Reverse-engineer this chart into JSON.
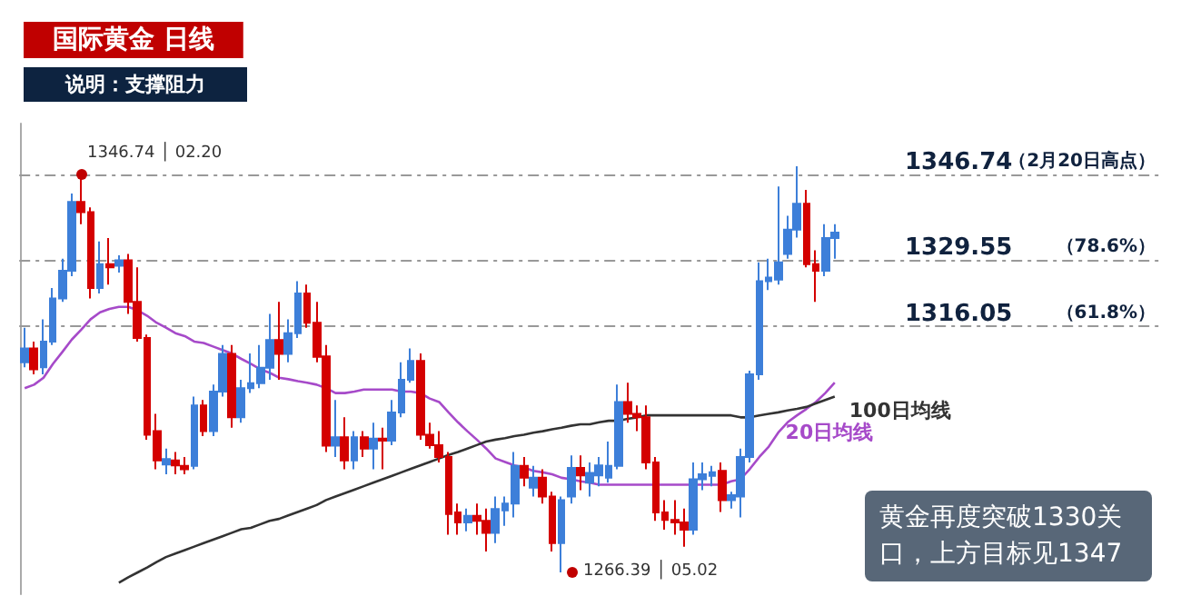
{
  "chart_data": {
    "type": "candlestick",
    "title": "国际黄金 日线",
    "subtitle": "说明：支撑阻力",
    "categories": [
      null,
      null,
      null,
      null,
      null,
      null,
      null,
      null,
      null,
      null,
      null,
      null,
      null,
      null,
      null,
      null,
      null,
      null,
      null,
      null,
      null,
      null,
      null,
      null,
      null,
      null,
      null,
      null,
      null,
      null,
      null,
      null,
      null,
      null,
      null,
      null,
      null,
      null,
      null,
      null,
      null,
      null,
      null,
      null,
      null,
      null,
      null,
      null,
      null,
      null,
      null,
      null,
      null,
      null,
      null,
      null,
      null,
      null,
      null,
      null,
      null,
      null,
      null,
      null,
      null,
      null,
      null,
      null,
      null,
      null,
      null,
      null,
      null,
      null,
      null,
      null,
      null,
      null,
      null,
      null,
      null,
      null,
      null,
      null,
      null,
      null,
      null
    ],
    "ohlc": [
      [
        1308.8,
        1315.8,
        1307.8,
        1311.6
      ],
      [
        1311.6,
        1313.0,
        1306.4,
        1307.4
      ],
      [
        1307.8,
        1317.5,
        1306.4,
        1313.0
      ],
      [
        1313.0,
        1323.8,
        1312.3,
        1321.7
      ],
      [
        1321.7,
        1329.7,
        1321.0,
        1327.3
      ],
      [
        1327.3,
        1342.9,
        1326.2,
        1341.2
      ],
      [
        1341.2,
        1346.74,
        1336.7,
        1339.1
      ],
      [
        1339.1,
        1340.1,
        1321.7,
        1323.8
      ],
      [
        1323.8,
        1333.2,
        1322.7,
        1328.6
      ],
      [
        1328.6,
        1333.9,
        1324.5,
        1328.0
      ],
      [
        1328.3,
        1330.4,
        1326.9,
        1329.4
      ],
      [
        1329.4,
        1330.7,
        1318.6,
        1321.0
      ],
      [
        1321.0,
        1328.0,
        1313.0,
        1313.7
      ],
      [
        1313.7,
        1314.4,
        1293.2,
        1294.2
      ],
      [
        1294.9,
        1298.4,
        1287.2,
        1289.0
      ],
      [
        1288.2,
        1291.4,
        1286.2,
        1289.3
      ],
      [
        1289.0,
        1290.7,
        1286.2,
        1288.0
      ],
      [
        1287.9,
        1289.7,
        1286.2,
        1287.2
      ],
      [
        1287.9,
        1301.9,
        1287.2,
        1300.1
      ],
      [
        1300.1,
        1301.2,
        1293.9,
        1294.9
      ],
      [
        1294.9,
        1304.3,
        1293.9,
        1302.9
      ],
      [
        1302.9,
        1312.3,
        1301.9,
        1310.5
      ],
      [
        1310.5,
        1312.3,
        1295.6,
        1297.7
      ],
      [
        1297.7,
        1305.3,
        1296.6,
        1303.6
      ],
      [
        1303.6,
        1310.6,
        1302.6,
        1304.6
      ],
      [
        1304.6,
        1312.3,
        1303.6,
        1307.7
      ],
      [
        1307.7,
        1318.6,
        1305.3,
        1313.3
      ],
      [
        1313.3,
        1321.0,
        1305.3,
        1310.5
      ],
      [
        1310.5,
        1317.5,
        1308.8,
        1314.7
      ],
      [
        1314.7,
        1325.2,
        1313.7,
        1322.7
      ],
      [
        1322.7,
        1324.5,
        1315.8,
        1316.8
      ],
      [
        1316.8,
        1321.0,
        1308.8,
        1309.9
      ],
      [
        1310.0,
        1312.3,
        1290.7,
        1292.0
      ],
      [
        1292.0,
        1301.2,
        1289.7,
        1293.7
      ],
      [
        1293.7,
        1297.7,
        1287.2,
        1289.0
      ],
      [
        1289.0,
        1294.9,
        1287.2,
        1293.7
      ],
      [
        1293.7,
        1294.9,
        1289.7,
        1291.4
      ],
      [
        1291.4,
        1296.6,
        1287.2,
        1293.4
      ],
      [
        1293.4,
        1295.6,
        1287.2,
        1293.0
      ],
      [
        1293.0,
        1301.2,
        1292.1,
        1298.7
      ],
      [
        1298.7,
        1308.8,
        1297.7,
        1305.3
      ],
      [
        1305.3,
        1311.6,
        1304.7,
        1309.1
      ],
      [
        1309.1,
        1310.6,
        1293.2,
        1294.2
      ],
      [
        1294.2,
        1296.6,
        1291.4,
        1292.1
      ],
      [
        1292.1,
        1294.9,
        1288.6,
        1289.7
      ],
      [
        1289.7,
        1290.7,
        1274.0,
        1278.2
      ],
      [
        1278.5,
        1280.3,
        1274.0,
        1276.5
      ],
      [
        1276.5,
        1279.3,
        1274.7,
        1277.8
      ],
      [
        1277.8,
        1280.3,
        1274.0,
        1276.8
      ],
      [
        1276.8,
        1279.3,
        1270.6,
        1274.4
      ],
      [
        1274.4,
        1281.7,
        1272.3,
        1279.2
      ],
      [
        1278.9,
        1281.7,
        1275.8,
        1280.3
      ],
      [
        1280.3,
        1290.7,
        1277.5,
        1287.9
      ],
      [
        1287.9,
        1289.7,
        1283.8,
        1285.5
      ],
      [
        1283.5,
        1287.9,
        1281.7,
        1285.5
      ],
      [
        1285.5,
        1287.2,
        1280.3,
        1281.7
      ],
      [
        1281.7,
        1282.7,
        1270.6,
        1272.3
      ],
      [
        1272.3,
        1281.7,
        1266.39,
        1281.0
      ],
      [
        1281.7,
        1290.0,
        1280.3,
        1287.5
      ],
      [
        1287.5,
        1290.0,
        1283.0,
        1286.0
      ],
      [
        1284.5,
        1288.6,
        1281.7,
        1286.5
      ],
      [
        1286.0,
        1289.7,
        1283.8,
        1288.0
      ],
      [
        1285.5,
        1292.8,
        1284.5,
        1287.9
      ],
      [
        1287.9,
        1304.3,
        1287.2,
        1300.8
      ],
      [
        1300.8,
        1304.7,
        1296.6,
        1298.4
      ],
      [
        1298.4,
        1300.1,
        1294.9,
        1297.7
      ],
      [
        1297.7,
        1300.1,
        1287.2,
        1288.6
      ],
      [
        1288.6,
        1289.7,
        1276.8,
        1278.5
      ],
      [
        1278.5,
        1281.0,
        1275.0,
        1277.0
      ],
      [
        1277.0,
        1281.0,
        1274.0,
        1276.5
      ],
      [
        1276.5,
        1279.3,
        1271.6,
        1275.0
      ],
      [
        1275.0,
        1288.6,
        1274.0,
        1285.2
      ],
      [
        1285.2,
        1288.6,
        1283.0,
        1286.2
      ],
      [
        1285.9,
        1287.9,
        1283.8,
        1286.6
      ],
      [
        1286.9,
        1288.6,
        1278.6,
        1281.0
      ],
      [
        1281.0,
        1282.7,
        1279.3,
        1282.0
      ],
      [
        1281.7,
        1291.4,
        1277.5,
        1289.7
      ],
      [
        1289.7,
        1307.1,
        1288.6,
        1306.4
      ],
      [
        1306.4,
        1329.0,
        1305.3,
        1325.2
      ],
      [
        1325.2,
        1329.7,
        1323.4,
        1325.9
      ],
      [
        1325.5,
        1344.3,
        1324.5,
        1329.0
      ],
      [
        1330.7,
        1338.4,
        1329.7,
        1335.6
      ],
      [
        1335.6,
        1348.4,
        1334.0,
        1340.8
      ],
      [
        1340.8,
        1343.6,
        1328.0,
        1328.6
      ],
      [
        1328.6,
        1331.4,
        1321.0,
        1327.3
      ],
      [
        1327.3,
        1336.7,
        1326.2,
        1333.9
      ],
      [
        1333.9,
        1336.7,
        1329.7,
        1335.0
      ]
    ],
    "colors": [
      "#3d7fd9",
      "#d40000",
      "#3d7fd9",
      "#3d7fd9",
      "#3d7fd9",
      "#3d7fd9",
      "#d40000",
      "#d40000",
      "#3d7fd9",
      "#d40000",
      "#3d7fd9",
      "#d40000",
      "#d40000",
      "#d40000",
      "#d40000",
      "#3d7fd9",
      "#d40000",
      "#d40000",
      "#3d7fd9",
      "#d40000",
      "#3d7fd9",
      "#3d7fd9",
      "#d40000",
      "#3d7fd9",
      "#3d7fd9",
      "#3d7fd9",
      "#3d7fd9",
      "#d40000",
      "#3d7fd9",
      "#3d7fd9",
      "#d40000",
      "#d40000",
      "#d40000",
      "#3d7fd9",
      "#d40000",
      "#3d7fd9",
      "#d40000",
      "#3d7fd9",
      "#d40000",
      "#3d7fd9",
      "#3d7fd9",
      "#3d7fd9",
      "#d40000",
      "#d40000",
      "#d40000",
      "#d40000",
      "#d40000",
      "#3d7fd9",
      "#d40000",
      "#d40000",
      "#3d7fd9",
      "#3d7fd9",
      "#3d7fd9",
      "#d40000",
      "#3d7fd9",
      "#d40000",
      "#d40000",
      "#3d7fd9",
      "#3d7fd9",
      "#d40000",
      "#3d7fd9",
      "#3d7fd9",
      "#3d7fd9",
      "#3d7fd9",
      "#d40000",
      "#d40000",
      "#d40000",
      "#d40000",
      "#d40000",
      "#d40000",
      "#d40000",
      "#3d7fd9",
      "#3d7fd9",
      "#3d7fd9",
      "#d40000",
      "#3d7fd9",
      "#3d7fd9",
      "#3d7fd9",
      "#3d7fd9",
      "#3d7fd9",
      "#3d7fd9",
      "#3d7fd9",
      "#3d7fd9",
      "#d40000",
      "#d40000",
      "#3d7fd9",
      "#3d7fd9"
    ],
    "series": [
      {
        "name": "20日均线",
        "type": "line",
        "color": "#a64ac9",
        "values": [
          1303.6,
          1304.3,
          1305.7,
          1308.5,
          1310.9,
          1313.4,
          1315.4,
          1317.5,
          1318.9,
          1319.6,
          1320.0,
          1320.0,
          1319.3,
          1318.2,
          1316.8,
          1315.8,
          1314.7,
          1314.1,
          1313.0,
          1312.7,
          1312.0,
          1311.3,
          1310.6,
          1309.5,
          1308.5,
          1307.4,
          1306.7,
          1305.7,
          1305.4,
          1305.0,
          1304.7,
          1304.3,
          1303.6,
          1302.6,
          1302.6,
          1302.9,
          1303.3,
          1303.3,
          1303.3,
          1303.3,
          1302.9,
          1302.9,
          1302.6,
          1301.5,
          1300.8,
          1298.7,
          1296.7,
          1294.9,
          1293.2,
          1291.4,
          1289.4,
          1288.7,
          1288.0,
          1287.6,
          1286.9,
          1286.6,
          1286.2,
          1285.5,
          1285.2,
          1284.8,
          1284.5,
          1284.1,
          1284.1,
          1284.1,
          1284.1,
          1284.1,
          1284.1,
          1284.1,
          1284.1,
          1284.1,
          1284.1,
          1284.1,
          1284.1,
          1284.1,
          1284.1,
          1284.8,
          1285.2,
          1287.3,
          1289.7,
          1291.8,
          1294.6,
          1296.7,
          1298.1,
          1299.4,
          1300.8,
          1302.6,
          1304.7
        ]
      },
      {
        "name": "100日均线",
        "type": "line",
        "color": "#333333",
        "values": [
          null,
          null,
          null,
          null,
          null,
          null,
          null,
          null,
          null,
          null,
          1264.3,
          1265.4,
          1266.4,
          1267.4,
          1268.5,
          1269.5,
          1270.2,
          1270.9,
          1271.6,
          1272.3,
          1273.0,
          1273.7,
          1274.4,
          1275.1,
          1275.4,
          1276.1,
          1276.8,
          1277.2,
          1277.9,
          1278.6,
          1279.3,
          1280.0,
          1281.0,
          1281.7,
          1282.4,
          1283.1,
          1283.8,
          1284.5,
          1285.2,
          1285.9,
          1286.6,
          1287.3,
          1288.0,
          1288.7,
          1289.4,
          1290.1,
          1290.7,
          1291.4,
          1292.1,
          1292.8,
          1293.2,
          1293.5,
          1293.9,
          1294.2,
          1294.6,
          1294.9,
          1295.3,
          1295.6,
          1296.0,
          1296.3,
          1296.3,
          1296.7,
          1297.0,
          1297.0,
          1297.4,
          1297.7,
          1298.1,
          1298.1,
          1298.1,
          1298.1,
          1298.1,
          1298.1,
          1298.1,
          1298.1,
          1298.1,
          1298.1,
          1297.7,
          1297.7,
          1298.1,
          1298.4,
          1298.7,
          1299.1,
          1299.4,
          1299.8,
          1300.5,
          1301.2,
          1301.9
        ]
      }
    ],
    "ylim": [
      1262,
      1357
    ],
    "yticks": [
      1316.05,
      1329.55,
      1346.74
    ],
    "ref_lines": [
      {
        "axis": "y",
        "value": 1346.74,
        "label": "（2月20日高点）",
        "color": "#999999",
        "line_style": "dashed"
      },
      {
        "axis": "y",
        "value": 1329.55,
        "label": "（78.6%）",
        "color": "#999999",
        "line_style": "dashed"
      },
      {
        "axis": "y",
        "value": 1316.05,
        "label": "（61.8%）",
        "color": "#999999",
        "line_style": "dashed"
      }
    ],
    "annotations": [
      "1346.74 │ 02.20",
      "1266.39 │ 05.02",
      "黄金再度突破1330关口，上方目标见1347"
    ],
    "marker": "none",
    "legend": false,
    "grid": false,
    "tick_labels": "y"
  }
}
